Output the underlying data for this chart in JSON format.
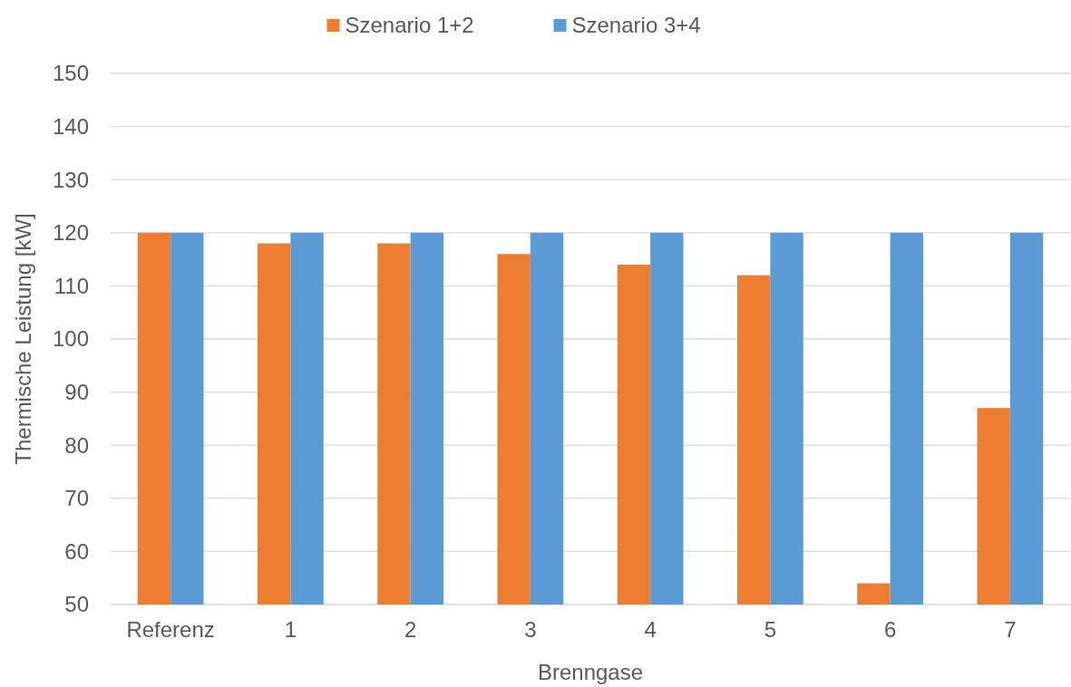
{
  "chart_data": {
    "type": "bar",
    "xlabel": "Brenngase",
    "ylabel": "Thermische Leistung [kW]",
    "categories": [
      "Referenz",
      "1",
      "2",
      "3",
      "4",
      "5",
      "6",
      "7"
    ],
    "series": [
      {
        "name": "Szenario 1+2",
        "color": "#ed7d31",
        "values": [
          120,
          118,
          118,
          116,
          114,
          112,
          54,
          87
        ]
      },
      {
        "name": "Szenario 3+4",
        "color": "#5b9bd5",
        "values": [
          120,
          120,
          120,
          120,
          120,
          120,
          120,
          120
        ]
      }
    ],
    "ylim": [
      50,
      150
    ],
    "yticks": [
      50,
      60,
      70,
      80,
      90,
      100,
      110,
      120,
      130,
      140,
      150
    ],
    "grid": "y",
    "legend": "top"
  }
}
